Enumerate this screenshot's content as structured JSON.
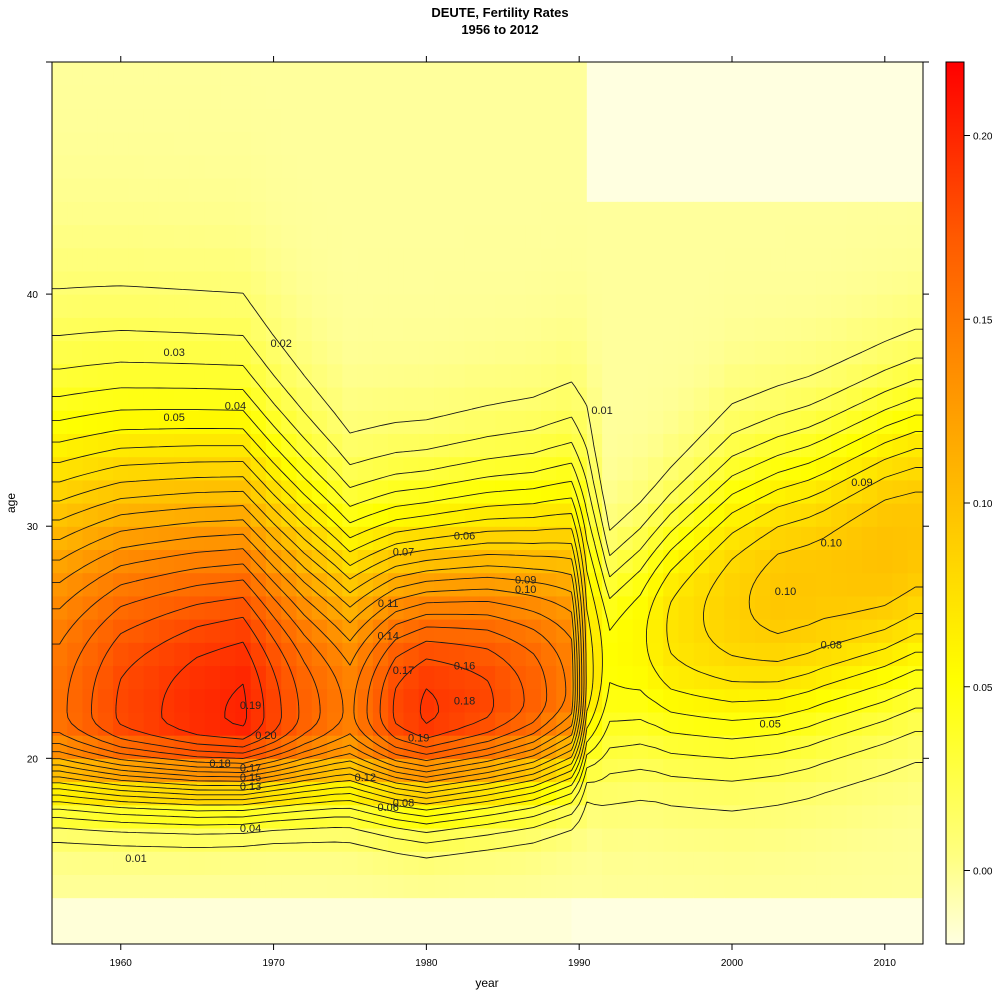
{
  "chart_data": {
    "type": "heatmap",
    "title": "DEUTE, Fertility Rates",
    "subtitle": "1956 to 2012",
    "xlabel": "year",
    "ylabel": "age",
    "xlim": [
      1955.5,
      2012.5
    ],
    "ylim": [
      12,
      50
    ],
    "x_ticks": [
      "1960",
      "1970",
      "1980",
      "1990",
      "2000",
      "2010"
    ],
    "y_ticks": [
      "20",
      "30",
      "40"
    ],
    "colorbar": {
      "range": [
        -0.02,
        0.22
      ],
      "ticks": [
        "0.00",
        "0.05",
        "0.10",
        "0.15",
        "0.20"
      ],
      "low_color": "#FFFFD0",
      "mid_color": "#FFFF00",
      "high_color": "#FF0000"
    },
    "peaks": [
      {
        "year": 1967,
        "age": 21.5,
        "value": 0.2
      },
      {
        "year": 1980,
        "age": 21.5,
        "value": 0.19
      },
      {
        "year": 2003,
        "age": 26.5,
        "value": 0.1
      },
      {
        "year": 2010,
        "age": 29,
        "value": 0.1
      }
    ],
    "contour_labels": [
      {
        "text": "0.01",
        "x": 1961,
        "y": 15.7
      },
      {
        "text": "0.01",
        "x": 1991.5,
        "y": 35.0
      },
      {
        "text": "0.02",
        "x": 1970.5,
        "y": 37.9
      },
      {
        "text": "0.03",
        "x": 1963.5,
        "y": 37.5
      },
      {
        "text": "0.04",
        "x": 1967.5,
        "y": 35.2
      },
      {
        "text": "0.04",
        "x": 1968.5,
        "y": 17.0
      },
      {
        "text": "0.05",
        "x": 1963.5,
        "y": 34.7
      },
      {
        "text": "0.05",
        "x": 2002.5,
        "y": 21.5
      },
      {
        "text": "0.06",
        "x": 1982.5,
        "y": 29.6
      },
      {
        "text": "0.06",
        "x": 1977.5,
        "y": 17.9
      },
      {
        "text": "0.07",
        "x": 1978.5,
        "y": 28.9
      },
      {
        "text": "0.08",
        "x": 2006.5,
        "y": 24.9
      },
      {
        "text": "0.08",
        "x": 1978.5,
        "y": 18.1
      },
      {
        "text": "0.09",
        "x": 1986.5,
        "y": 27.7
      },
      {
        "text": "0.09",
        "x": 2008.5,
        "y": 31.9
      },
      {
        "text": "0.10",
        "x": 1986.5,
        "y": 27.3
      },
      {
        "text": "0.10",
        "x": 2003.5,
        "y": 27.2
      },
      {
        "text": "0.10",
        "x": 2006.5,
        "y": 29.3
      },
      {
        "text": "0.11",
        "x": 1977.5,
        "y": 26.7
      },
      {
        "text": "0.12",
        "x": 1976.0,
        "y": 19.2
      },
      {
        "text": "0.13",
        "x": 1968.5,
        "y": 18.8
      },
      {
        "text": "0.14",
        "x": 1977.5,
        "y": 25.3
      },
      {
        "text": "0.15",
        "x": 1968.5,
        "y": 19.2
      },
      {
        "text": "0.16",
        "x": 1982.5,
        "y": 24.0
      },
      {
        "text": "0.17",
        "x": 1978.5,
        "y": 23.8
      },
      {
        "text": "0.17",
        "x": 1968.5,
        "y": 19.6
      },
      {
        "text": "0.18",
        "x": 1982.5,
        "y": 22.5
      },
      {
        "text": "0.18",
        "x": 1966.5,
        "y": 19.8
      },
      {
        "text": "0.19",
        "x": 1968.5,
        "y": 22.3
      },
      {
        "text": "0.19",
        "x": 1979.5,
        "y": 20.9
      },
      {
        "text": "0.20",
        "x": 1969.5,
        "y": 21.0
      }
    ]
  }
}
